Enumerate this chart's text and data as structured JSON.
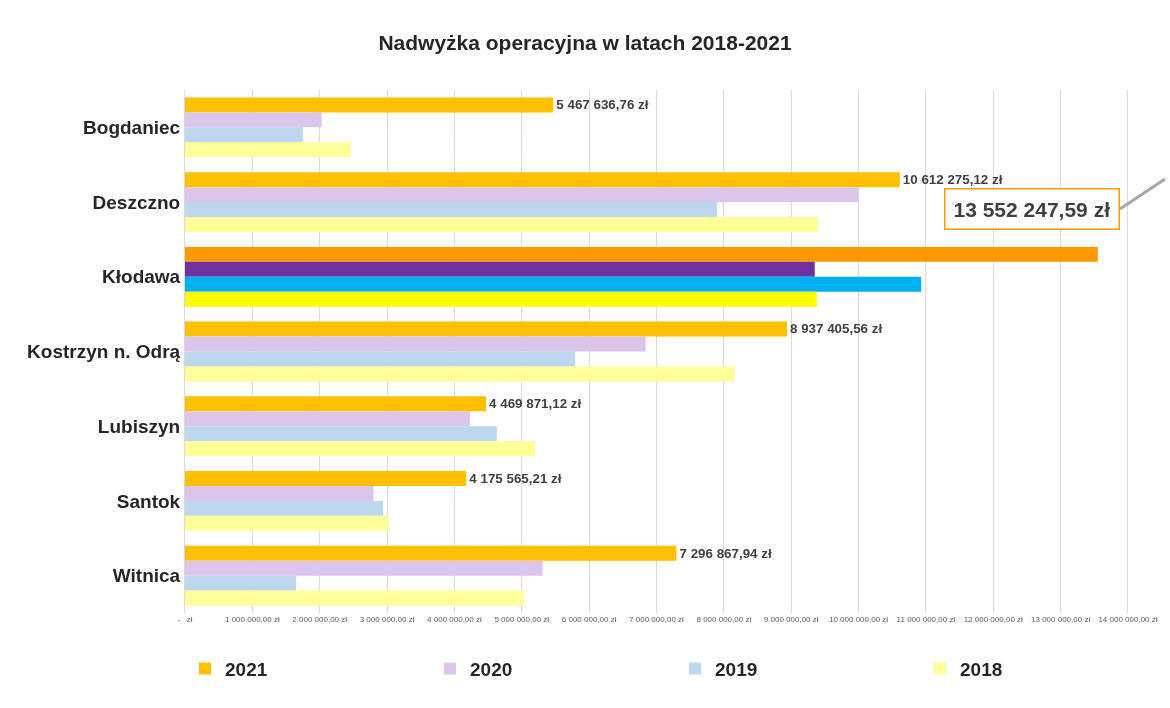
{
  "chart_data": {
    "type": "bar",
    "orientation": "horizontal",
    "title": "Nadwyżka operacyjna w latach 2018-2021",
    "categories": [
      "Bogdaniec",
      "Deszczno",
      "Kłodawa",
      "Kostrzyn n. Odrą",
      "Lubiszyn",
      "Santok",
      "Witnica"
    ],
    "series": [
      {
        "name": "2021",
        "color": "#ffc000",
        "colors": [
          null,
          null,
          "#ff9900",
          null,
          null,
          null,
          null
        ],
        "values": [
          5467636.76,
          10612275.12,
          13552247.59,
          8937405.56,
          4469871.12,
          4175565.21,
          7296867.94
        ],
        "value_labels": [
          "5 467 636,76 zł",
          "10 612 275,12 zł",
          null,
          "8 937 405,56 zł",
          "4 469 871,12 zł",
          "4 175 565,21 zł",
          "7 296 867,94 zł"
        ]
      },
      {
        "name": "2020",
        "color": "#dcc5ea",
        "colors": [
          null,
          null,
          "#7030a0",
          null,
          null,
          null,
          null
        ],
        "values": [
          2030000,
          10000000,
          9350000,
          6840000,
          4230000,
          2800000,
          5310000
        ]
      },
      {
        "name": "2019",
        "color": "#bdd7ee",
        "colors": [
          null,
          null,
          "#00b0f0",
          null,
          null,
          null,
          null
        ],
        "values": [
          1750000,
          7900000,
          10930000,
          5790000,
          4630000,
          2940000,
          1650000
        ]
      },
      {
        "name": "2018",
        "color": "#ffff99",
        "colors": [
          null,
          null,
          "#ffff00",
          null,
          null,
          null,
          null
        ],
        "values": [
          2460000,
          9400000,
          9380000,
          8160000,
          5200000,
          3030000,
          5030000
        ]
      }
    ],
    "annotations": [
      "13 552 247,59 zł"
    ],
    "xlim": [
      0,
      14550000
    ],
    "xticks": [
      {
        "value": 0,
        "label": "-   zł"
      },
      {
        "value": 1000000,
        "label": "1 000 000,00 zł"
      },
      {
        "value": 2000000,
        "label": "2 000 000,00 zł"
      },
      {
        "value": 3000000,
        "label": "3 000 000,00 zł"
      },
      {
        "value": 4000000,
        "label": "4 000 000,00 zł"
      },
      {
        "value": 5000000,
        "label": "5 000 000,00 zł"
      },
      {
        "value": 6000000,
        "label": "6 000 000,00 zł"
      },
      {
        "value": 7000000,
        "label": "7 000 000,00 zł"
      },
      {
        "value": 8000000,
        "label": "8 000 000,00 zł"
      },
      {
        "value": 9000000,
        "label": "9 000 000,00 zł"
      },
      {
        "value": 10000000,
        "label": "10 000 000,00 zł"
      },
      {
        "value": 11000000,
        "label": "11 000 000,00 zł"
      },
      {
        "value": 12000000,
        "label": "12 000 000,00 zł"
      },
      {
        "value": 13000000,
        "label": "13 000 000,00 zł"
      },
      {
        "value": 14000000,
        "label": "14 000 000,00 zł"
      }
    ],
    "grid": "x",
    "legend": "bottom"
  }
}
